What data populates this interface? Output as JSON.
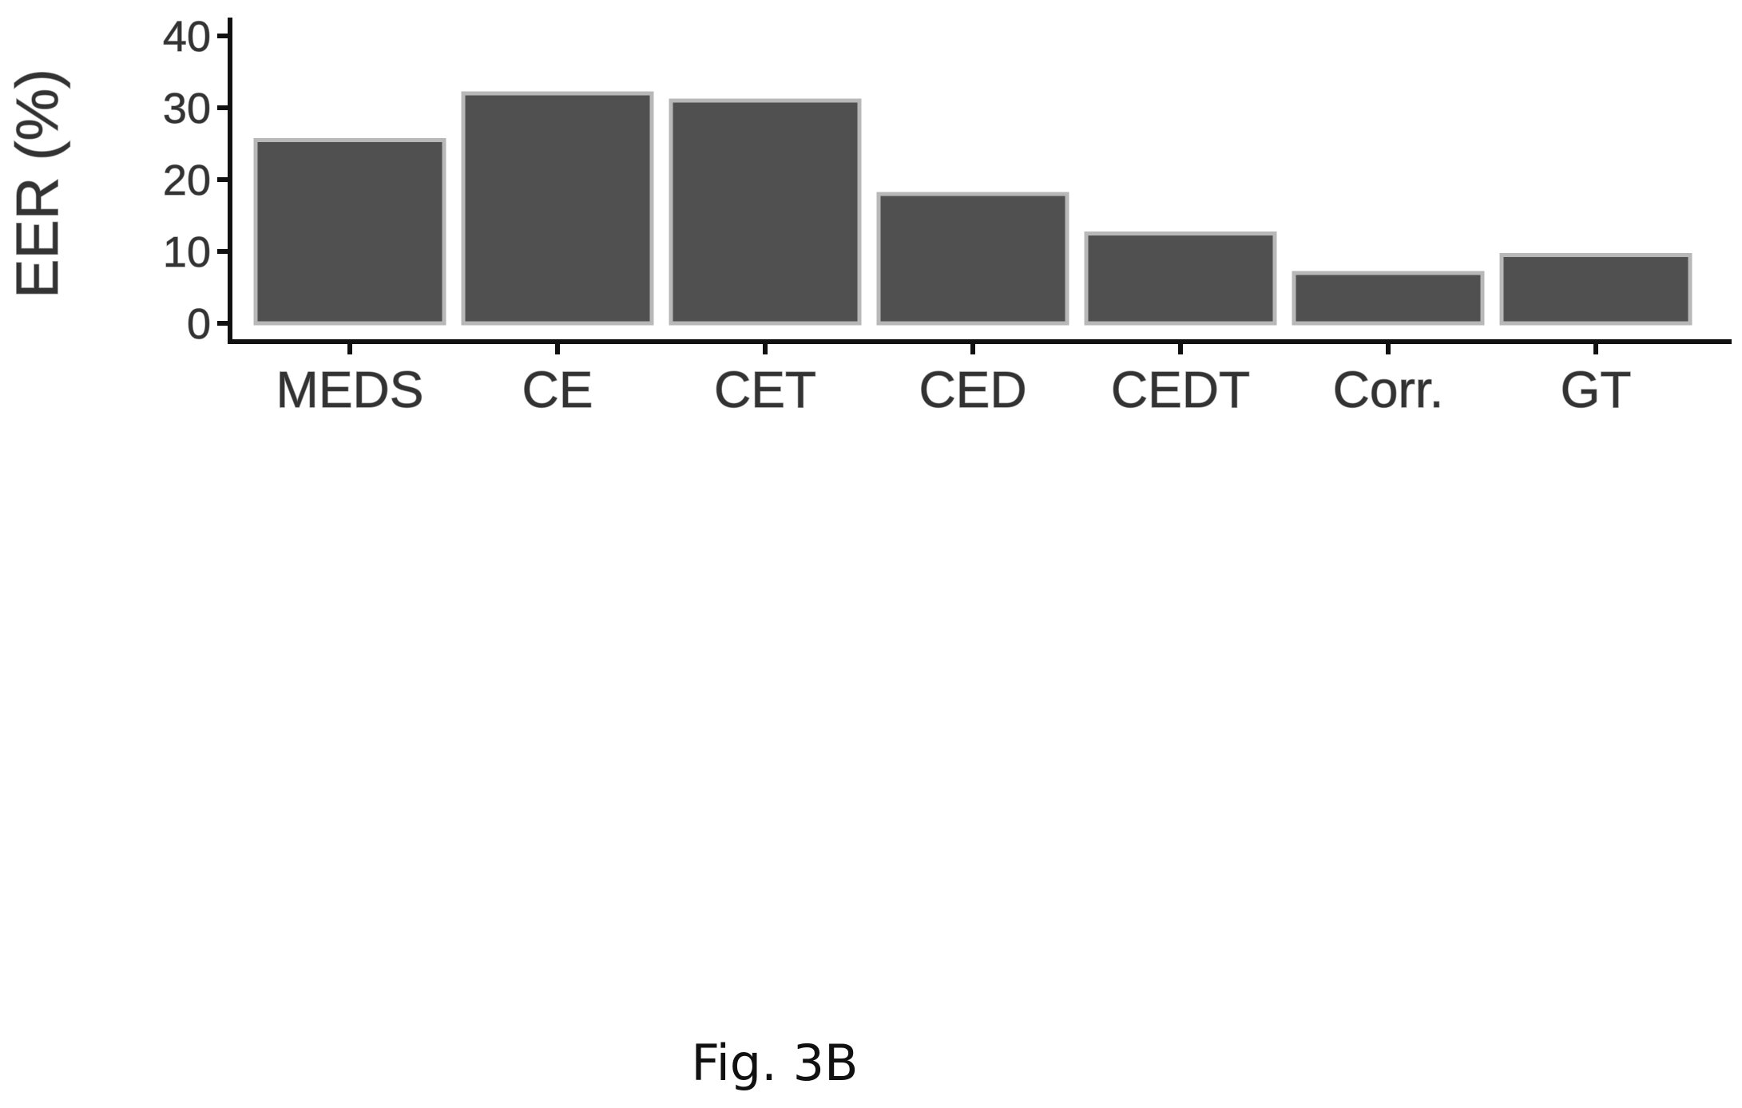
{
  "figure": {
    "caption": "Fig. 3B"
  },
  "colors": {
    "bar": "#505050",
    "bar_outline": "#b8b8b8",
    "axis": "#111111"
  },
  "chart_data": {
    "type": "bar",
    "categories": [
      "MEDS",
      "CE",
      "CET",
      "CED",
      "CEDT",
      "Corr.",
      "GT"
    ],
    "values": [
      25.5,
      32,
      31,
      18,
      12.5,
      7,
      9.5
    ],
    "title": "",
    "xlabel": "",
    "ylabel": "EER (%)",
    "ylim": [
      0,
      40
    ],
    "yticks": [
      "0",
      "10",
      "20",
      "30",
      "40"
    ],
    "grid": false,
    "legend": "none"
  }
}
